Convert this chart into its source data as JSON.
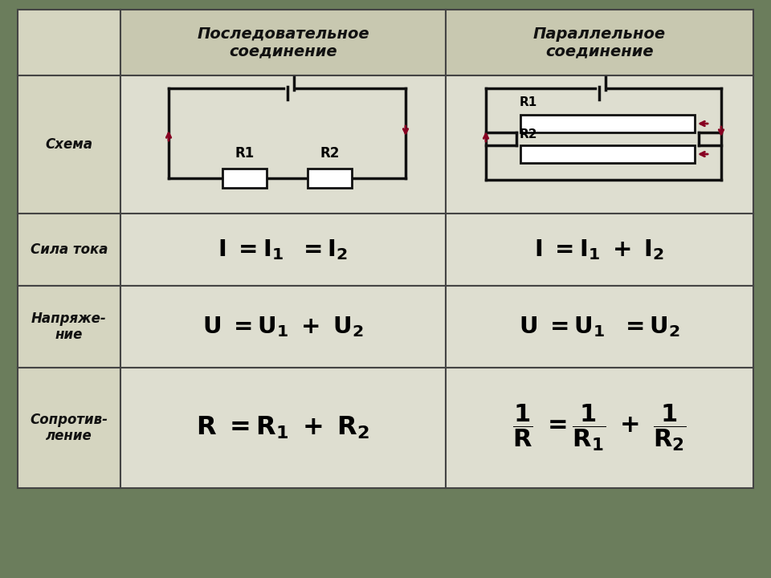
{
  "bg_color": "#6b7d5c",
  "table_bg": "#d5d5c0",
  "header_bg": "#c8c8b0",
  "cell_bg": "#deded0",
  "border_color": "#444444",
  "title_color": "#111111",
  "text_color": "#111111",
  "col_header_1": "Последовательное\nсоединение",
  "col_header_2": "Параллельное\nсоединение",
  "row_labels": [
    "Схема",
    "Сила тока",
    "Напряже-\nние",
    "Сопротив-\nление"
  ],
  "wire_color": "#111111",
  "arrow_color": "#880022",
  "resistor_color": "#ffffff",
  "resistor_border": "#111111",
  "figw": 9.6,
  "figh": 7.2,
  "dpi": 100
}
